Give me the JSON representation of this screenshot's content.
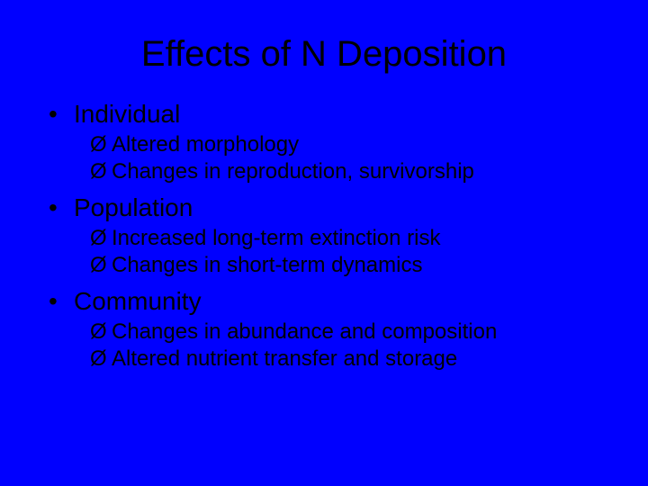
{
  "title": "Effects of N Deposition",
  "sections": [
    {
      "heading": "Individual",
      "items": [
        "Altered morphology",
        "Changes in reproduction, survivorship"
      ]
    },
    {
      "heading": "Population",
      "items": [
        "Increased long-term extinction risk",
        "Changes in short-term dynamics"
      ]
    },
    {
      "heading": "Community",
      "items": [
        "Changes in abundance and composition",
        "Altered nutrient transfer and storage"
      ]
    }
  ],
  "bullet_char": "•",
  "arrow_char": "Ø",
  "colors": {
    "background": "#0000ff",
    "text": "#000000"
  },
  "fontsizes": {
    "title": 40,
    "bullet": 28,
    "sub": 24
  }
}
